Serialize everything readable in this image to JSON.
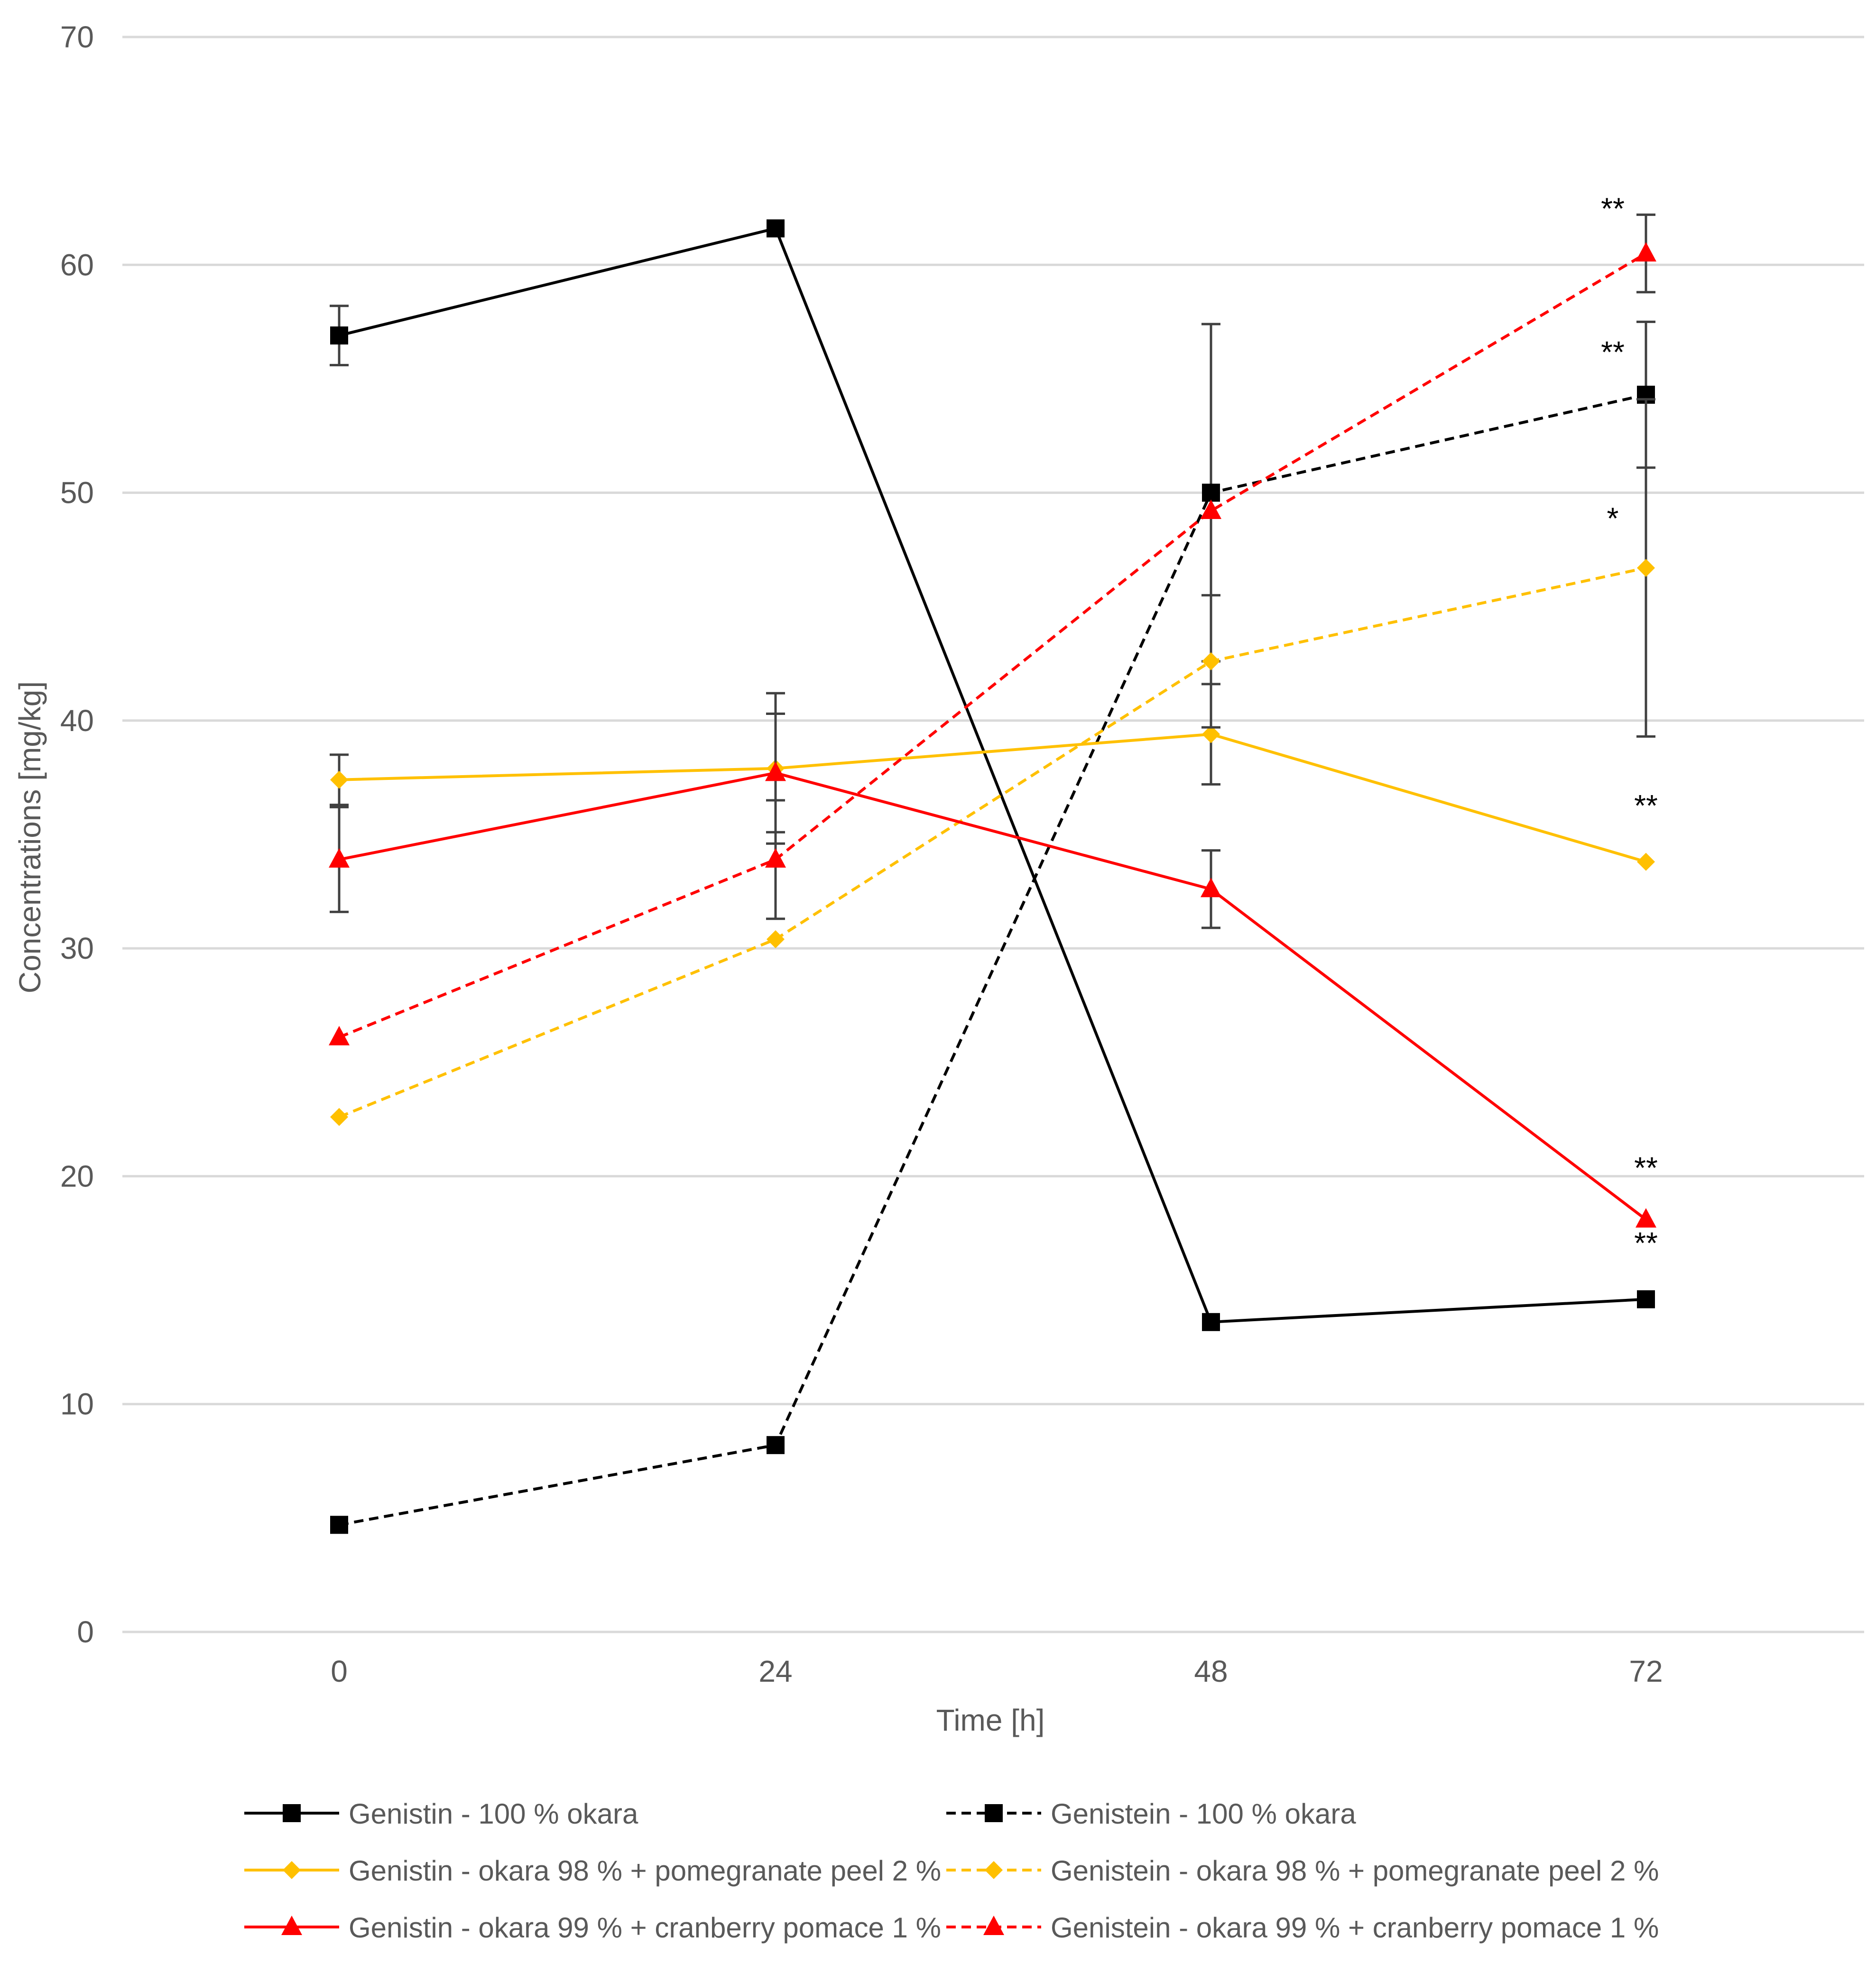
{
  "chart_data": {
    "type": "line",
    "title": "",
    "xlabel": "Time [h]",
    "ylabel": "Concentrations [mg/kg]",
    "categories": [
      "0",
      "24",
      "48",
      "72"
    ],
    "ylim": [
      0,
      70
    ],
    "yticks": [
      0,
      10,
      20,
      30,
      40,
      50,
      60,
      70
    ],
    "grid": true,
    "legend_position": "bottom",
    "series": [
      {
        "id": "genistin-okara",
        "name": "Genistin - 100 % okara",
        "color": "#000000",
        "dashed": false,
        "marker": "square",
        "values": [
          56.9,
          61.6,
          13.6,
          14.6
        ],
        "errors": [
          1.3,
          0,
          0,
          0
        ]
      },
      {
        "id": "genistein-okara",
        "name": "Genistein - 100 % okara",
        "color": "#000000",
        "dashed": true,
        "marker": "square",
        "values": [
          4.7,
          8.2,
          50.0,
          54.3
        ],
        "errors": [
          0,
          0,
          7.4,
          3.2
        ]
      },
      {
        "id": "genistin-pomegranate",
        "name": "Genistin - okara 98 % + pomegranate peel 2 %",
        "color": "#FFC000",
        "dashed": false,
        "marker": "diamond",
        "values": [
          37.4,
          37.9,
          39.4,
          33.8
        ],
        "errors": [
          1.1,
          3.3,
          2.2,
          0
        ]
      },
      {
        "id": "genistein-pomegranate",
        "name": "Genistein - okara 98 % + pomegranate peel 2 %",
        "color": "#FFC000",
        "dashed": true,
        "marker": "diamond",
        "values": [
          22.6,
          30.4,
          42.6,
          46.7
        ],
        "errors": [
          0,
          0,
          2.9,
          7.4
        ]
      },
      {
        "id": "genistin-cranberry",
        "name": "Genistin - okara 99 % + cranberry pomace 1 %",
        "color": "#FF0000",
        "dashed": false,
        "marker": "triangle",
        "values": [
          33.9,
          37.7,
          32.6,
          18.1
        ],
        "errors": [
          2.3,
          2.6,
          1.7,
          0
        ]
      },
      {
        "id": "genistein-cranberry",
        "name": "Genistein - okara 99 % + cranberry pomace 1 %",
        "color": "#FF0000",
        "dashed": true,
        "marker": "triangle",
        "values": [
          26.1,
          33.9,
          49.2,
          60.5
        ],
        "errors": [
          0,
          2.6,
          0,
          1.7
        ]
      }
    ],
    "annotations": [
      {
        "text": "**",
        "x": "72",
        "y": 62.6,
        "align": "left"
      },
      {
        "text": "**",
        "x": "72",
        "y": 56.3,
        "align": "left"
      },
      {
        "text": "*",
        "x": "72",
        "y": 49.0,
        "align": "left"
      },
      {
        "text": "**",
        "x": "72",
        "y": 36.4,
        "align": "center"
      },
      {
        "text": "**",
        "x": "72",
        "y": 20.5,
        "align": "center"
      },
      {
        "text": "**",
        "x": "72",
        "y": 17.2,
        "align": "center"
      }
    ]
  }
}
